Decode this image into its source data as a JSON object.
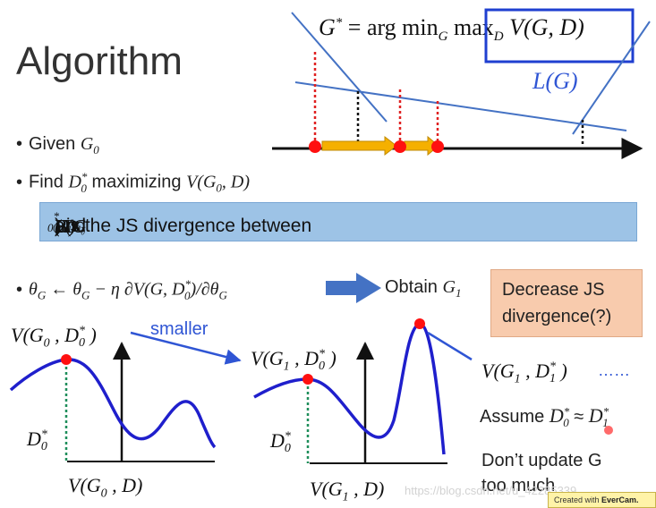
{
  "title": "Algorithm",
  "formula": "G* = arg min_G max_D V(G,D)",
  "formula_parts": {
    "lhs": "G",
    "sup": "*",
    "eq": " = arg min",
    "sub_g": "G",
    "max": "max",
    "sub_d": "D",
    "rhs": "V(G, D)"
  },
  "LG": "L(G)",
  "bullets": {
    "b1_text": "Given ",
    "b1_math": "G",
    "b1_sub": "0",
    "b2_text": "Find ",
    "b2_math": "D",
    "b2_sub": "0",
    "b2_sup": "*",
    "b2_rest": " maximizing ",
    "b2_math2": "V(G",
    "b2_sub2": "0",
    "b2_math2b": ", D)",
    "b3_math": "θ",
    "b3_sub": "G",
    "b3_mid": " ← θ",
    "b3_sub2": "G",
    "b3_rest": " − η ∂V(G, D",
    "b3_sub3": "0",
    "b3_sup3": "*",
    "b3_rest2": ")/∂θ",
    "b3_sub4": "G",
    "obtain_text": "Obtain ",
    "obtain_math": "G",
    "obtain_sub": "1"
  },
  "blue_box": {
    "part1": "V(G",
    "sub1": "0",
    "part2": ", D",
    "sub2": "0",
    "sup2": "*",
    "part3": ") is the JS divergence between ",
    "pdata": "P",
    "pdata_sub": "data",
    "pdata_x": "(x)",
    "and": " and ",
    "pg": "P",
    "pg_sub": "G",
    "pg_subsub": "0",
    "pg_x": "(x)"
  },
  "orange_box": {
    "line1": "Decrease JS",
    "line2": "divergence(?)"
  },
  "left_plot": {
    "top_label": "V(G",
    "top_sub": "0",
    "top_mid": " , D",
    "top_sub2": "0",
    "top_sup2": "*",
    "top_end": " )",
    "d_label": "D",
    "d_sub": "0",
    "d_sup": "*",
    "x_label": "V(G",
    "x_sub": "0",
    "x_end": " , D)"
  },
  "smaller": "smaller",
  "right_plot": {
    "top_label": "V(G",
    "top_sub": "1",
    "top_mid": " , D",
    "top_sub2": "0",
    "top_sup2": "*",
    "top_end": " )",
    "d_label": "D",
    "d_sub": "0",
    "d_sup": "*",
    "x_label": "V(G",
    "x_sub": "1",
    "x_end": " , D)"
  },
  "right_notes": {
    "v_label": "V(G",
    "v_sub": "1",
    "v_mid": " , D",
    "v_sub2": "1",
    "v_sup2": "*",
    "v_end": " )",
    "dots": "……",
    "assume": "Assume ",
    "assume_math": "D",
    "assume_sub": "0",
    "assume_sup": "*",
    "approx": " ≈ ",
    "assume_math2": "D",
    "assume_sub2": "1",
    "assume_sup2": "*",
    "dont1": "Don’t update G",
    "dont2": "too much"
  },
  "watermark": "https://blog.csdn.net/u_42285339",
  "evercam": {
    "prefix": "Created with ",
    "brand": "EverCam."
  },
  "colors": {
    "blue_curve": "#1F1FCC",
    "red_dot": "#FF1010",
    "dotted_red": "#E02020",
    "green": "#1E8E5A",
    "arrow_blue": "#4472C4",
    "orange_arrow": "#F5B000"
  }
}
